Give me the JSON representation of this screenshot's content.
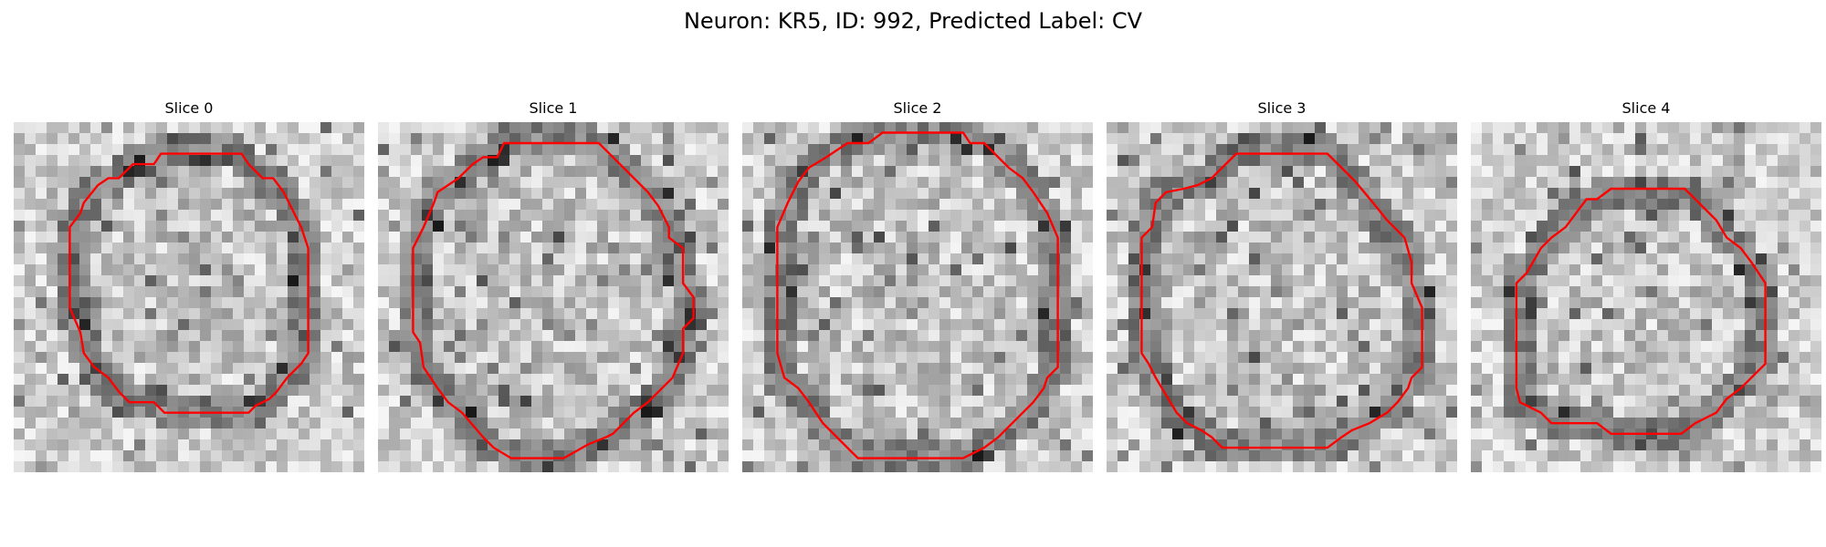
{
  "figure": {
    "title": "Neuron: KR5, ID: 992, Predicted Label: CV",
    "contour_color": "#ff0000"
  },
  "panels": [
    {
      "title": "Slice 0",
      "contour_points": [
        [
          0.42,
          0.09
        ],
        [
          0.65,
          0.09
        ],
        [
          0.67,
          0.12
        ],
        [
          0.7,
          0.15
        ],
        [
          0.71,
          0.16
        ],
        [
          0.74,
          0.16
        ],
        [
          0.77,
          0.2
        ],
        [
          0.8,
          0.26
        ],
        [
          0.82,
          0.3
        ],
        [
          0.84,
          0.36
        ],
        [
          0.84,
          0.56
        ],
        [
          0.84,
          0.66
        ],
        [
          0.82,
          0.69
        ],
        [
          0.78,
          0.73
        ],
        [
          0.75,
          0.77
        ],
        [
          0.73,
          0.79
        ],
        [
          0.69,
          0.81
        ],
        [
          0.67,
          0.83
        ],
        [
          0.43,
          0.83
        ],
        [
          0.4,
          0.8
        ],
        [
          0.33,
          0.8
        ],
        [
          0.3,
          0.77
        ],
        [
          0.27,
          0.73
        ],
        [
          0.23,
          0.7
        ],
        [
          0.2,
          0.66
        ],
        [
          0.19,
          0.6
        ],
        [
          0.16,
          0.53
        ],
        [
          0.16,
          0.3
        ],
        [
          0.19,
          0.26
        ],
        [
          0.2,
          0.23
        ],
        [
          0.24,
          0.18
        ],
        [
          0.27,
          0.16
        ],
        [
          0.3,
          0.16
        ],
        [
          0.34,
          0.12
        ],
        [
          0.4,
          0.12
        ]
      ]
    },
    {
      "title": "Slice 1",
      "contour_points": [
        [
          0.36,
          0.06
        ],
        [
          0.63,
          0.06
        ],
        [
          0.65,
          0.08
        ],
        [
          0.7,
          0.13
        ],
        [
          0.73,
          0.16
        ],
        [
          0.77,
          0.2
        ],
        [
          0.8,
          0.24
        ],
        [
          0.83,
          0.3
        ],
        [
          0.83,
          0.33
        ],
        [
          0.87,
          0.36
        ],
        [
          0.87,
          0.46
        ],
        [
          0.9,
          0.5
        ],
        [
          0.9,
          0.53
        ],
        [
          0.9,
          0.56
        ],
        [
          0.87,
          0.59
        ],
        [
          0.87,
          0.66
        ],
        [
          0.84,
          0.73
        ],
        [
          0.8,
          0.77
        ],
        [
          0.77,
          0.8
        ],
        [
          0.73,
          0.83
        ],
        [
          0.67,
          0.89
        ],
        [
          0.65,
          0.9
        ],
        [
          0.6,
          0.92
        ],
        [
          0.53,
          0.96
        ],
        [
          0.38,
          0.96
        ],
        [
          0.33,
          0.93
        ],
        [
          0.3,
          0.9
        ],
        [
          0.24,
          0.83
        ],
        [
          0.2,
          0.8
        ],
        [
          0.17,
          0.76
        ],
        [
          0.13,
          0.7
        ],
        [
          0.12,
          0.63
        ],
        [
          0.1,
          0.6
        ],
        [
          0.1,
          0.56
        ],
        [
          0.1,
          0.36
        ],
        [
          0.13,
          0.3
        ],
        [
          0.16,
          0.23
        ],
        [
          0.17,
          0.2
        ],
        [
          0.23,
          0.16
        ],
        [
          0.27,
          0.12
        ],
        [
          0.3,
          0.1
        ],
        [
          0.34,
          0.1
        ]
      ]
    },
    {
      "title": "Slice 2",
      "contour_points": [
        [
          0.4,
          0.03
        ],
        [
          0.63,
          0.03
        ],
        [
          0.65,
          0.06
        ],
        [
          0.69,
          0.06
        ],
        [
          0.73,
          0.1
        ],
        [
          0.76,
          0.13
        ],
        [
          0.8,
          0.16
        ],
        [
          0.83,
          0.2
        ],
        [
          0.87,
          0.26
        ],
        [
          0.9,
          0.33
        ],
        [
          0.9,
          0.56
        ],
        [
          0.9,
          0.66
        ],
        [
          0.9,
          0.7
        ],
        [
          0.87,
          0.73
        ],
        [
          0.86,
          0.76
        ],
        [
          0.83,
          0.8
        ],
        [
          0.8,
          0.83
        ],
        [
          0.77,
          0.86
        ],
        [
          0.73,
          0.9
        ],
        [
          0.69,
          0.93
        ],
        [
          0.63,
          0.96
        ],
        [
          0.33,
          0.96
        ],
        [
          0.3,
          0.93
        ],
        [
          0.27,
          0.9
        ],
        [
          0.23,
          0.86
        ],
        [
          0.19,
          0.8
        ],
        [
          0.16,
          0.76
        ],
        [
          0.12,
          0.73
        ],
        [
          0.1,
          0.66
        ],
        [
          0.1,
          0.3
        ],
        [
          0.13,
          0.23
        ],
        [
          0.16,
          0.17
        ],
        [
          0.19,
          0.13
        ],
        [
          0.24,
          0.1
        ],
        [
          0.3,
          0.06
        ],
        [
          0.36,
          0.06
        ]
      ]
    },
    {
      "title": "Slice 3",
      "contour_points": [
        [
          0.37,
          0.09
        ],
        [
          0.63,
          0.09
        ],
        [
          0.67,
          0.13
        ],
        [
          0.71,
          0.17
        ],
        [
          0.76,
          0.23
        ],
        [
          0.8,
          0.28
        ],
        [
          0.82,
          0.3
        ],
        [
          0.85,
          0.33
        ],
        [
          0.87,
          0.4
        ],
        [
          0.87,
          0.46
        ],
        [
          0.9,
          0.53
        ],
        [
          0.9,
          0.66
        ],
        [
          0.9,
          0.7
        ],
        [
          0.87,
          0.73
        ],
        [
          0.86,
          0.76
        ],
        [
          0.83,
          0.8
        ],
        [
          0.8,
          0.83
        ],
        [
          0.75,
          0.86
        ],
        [
          0.7,
          0.88
        ],
        [
          0.67,
          0.9
        ],
        [
          0.63,
          0.93
        ],
        [
          0.53,
          0.93
        ],
        [
          0.33,
          0.93
        ],
        [
          0.3,
          0.9
        ],
        [
          0.27,
          0.88
        ],
        [
          0.23,
          0.86
        ],
        [
          0.2,
          0.83
        ],
        [
          0.17,
          0.78
        ],
        [
          0.14,
          0.73
        ],
        [
          0.12,
          0.69
        ],
        [
          0.1,
          0.66
        ],
        [
          0.1,
          0.56
        ],
        [
          0.1,
          0.46
        ],
        [
          0.1,
          0.33
        ],
        [
          0.13,
          0.3
        ],
        [
          0.14,
          0.23
        ],
        [
          0.17,
          0.2
        ],
        [
          0.22,
          0.19
        ],
        [
          0.26,
          0.18
        ],
        [
          0.3,
          0.16
        ],
        [
          0.33,
          0.13
        ]
      ]
    },
    {
      "title": "Slice 4",
      "contour_points": [
        [
          0.4,
          0.19
        ],
        [
          0.5,
          0.19
        ],
        [
          0.61,
          0.19
        ],
        [
          0.64,
          0.22
        ],
        [
          0.7,
          0.28
        ],
        [
          0.73,
          0.33
        ],
        [
          0.77,
          0.36
        ],
        [
          0.8,
          0.4
        ],
        [
          0.82,
          0.43
        ],
        [
          0.84,
          0.46
        ],
        [
          0.84,
          0.69
        ],
        [
          0.8,
          0.73
        ],
        [
          0.77,
          0.76
        ],
        [
          0.73,
          0.79
        ],
        [
          0.7,
          0.83
        ],
        [
          0.64,
          0.86
        ],
        [
          0.6,
          0.89
        ],
        [
          0.4,
          0.89
        ],
        [
          0.36,
          0.86
        ],
        [
          0.23,
          0.86
        ],
        [
          0.2,
          0.83
        ],
        [
          0.14,
          0.8
        ],
        [
          0.13,
          0.76
        ],
        [
          0.13,
          0.6
        ],
        [
          0.13,
          0.46
        ],
        [
          0.16,
          0.43
        ],
        [
          0.2,
          0.36
        ],
        [
          0.23,
          0.33
        ],
        [
          0.27,
          0.3
        ],
        [
          0.3,
          0.26
        ],
        [
          0.33,
          0.22
        ],
        [
          0.36,
          0.22
        ]
      ]
    }
  ]
}
